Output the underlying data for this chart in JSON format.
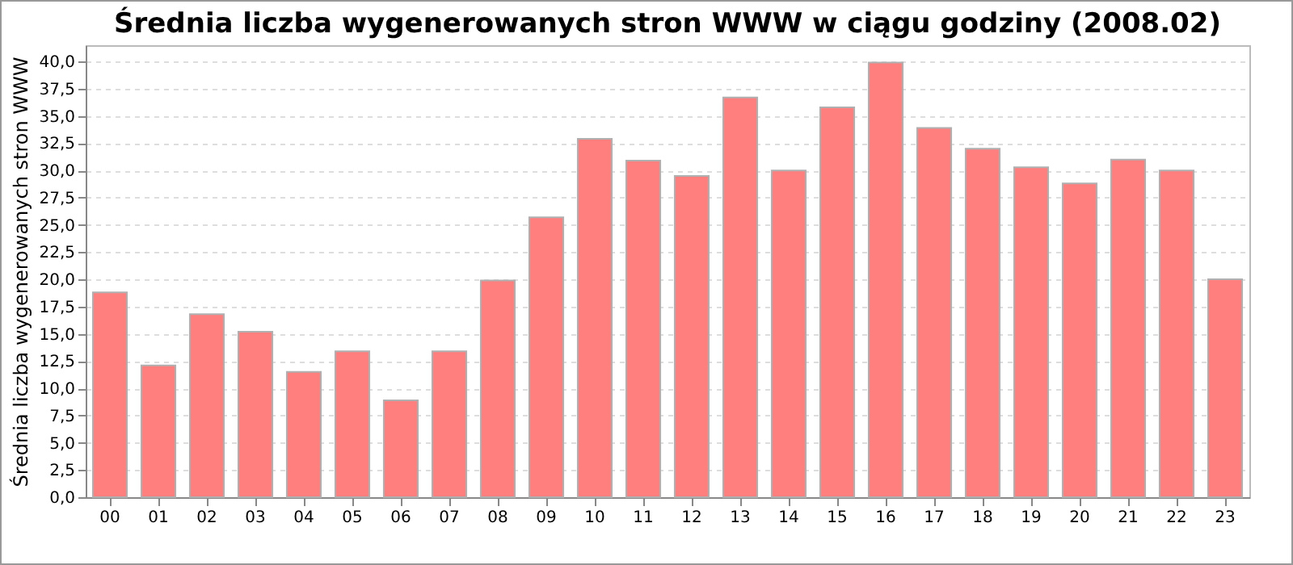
{
  "chart_data": {
    "type": "bar",
    "title": "Średnia liczba wygenerowanych stron WWW w ciągu godziny (2008.02)",
    "ylabel": "Średnia liczba wygenerowanych stron WWW",
    "categories": [
      "00",
      "01",
      "02",
      "03",
      "04",
      "05",
      "06",
      "07",
      "08",
      "09",
      "10",
      "11",
      "12",
      "13",
      "14",
      "15",
      "16",
      "17",
      "18",
      "19",
      "20",
      "21",
      "22",
      "23"
    ],
    "values": [
      18.8,
      12.1,
      16.8,
      15.2,
      11.5,
      13.4,
      8.9,
      13.4,
      19.9,
      25.7,
      32.9,
      30.9,
      29.5,
      36.7,
      30.0,
      35.8,
      39.9,
      33.9,
      32.0,
      30.3,
      28.8,
      31.0,
      30.0,
      20.0
    ],
    "color": "#ff7f7f",
    "ylim": [
      0,
      41.5
    ],
    "yticks": [
      {
        "value": 0,
        "label": "0,0"
      },
      {
        "value": 2.5,
        "label": "2,5"
      },
      {
        "value": 5,
        "label": "5,0"
      },
      {
        "value": 7.5,
        "label": "7,5"
      },
      {
        "value": 10,
        "label": "10,0"
      },
      {
        "value": 12.5,
        "label": "12,5"
      },
      {
        "value": 15,
        "label": "15,0"
      },
      {
        "value": 17.5,
        "label": "17,5"
      },
      {
        "value": 20,
        "label": "20,0"
      },
      {
        "value": 22.5,
        "label": "22,5"
      },
      {
        "value": 25,
        "label": "25,0"
      },
      {
        "value": 27.5,
        "label": "27,5"
      },
      {
        "value": 30,
        "label": "30,0"
      },
      {
        "value": 32.5,
        "label": "32,5"
      },
      {
        "value": 35,
        "label": "35,0"
      },
      {
        "value": 37.5,
        "label": "37,5"
      },
      {
        "value": 40,
        "label": "40,0"
      }
    ],
    "grid": "y"
  }
}
